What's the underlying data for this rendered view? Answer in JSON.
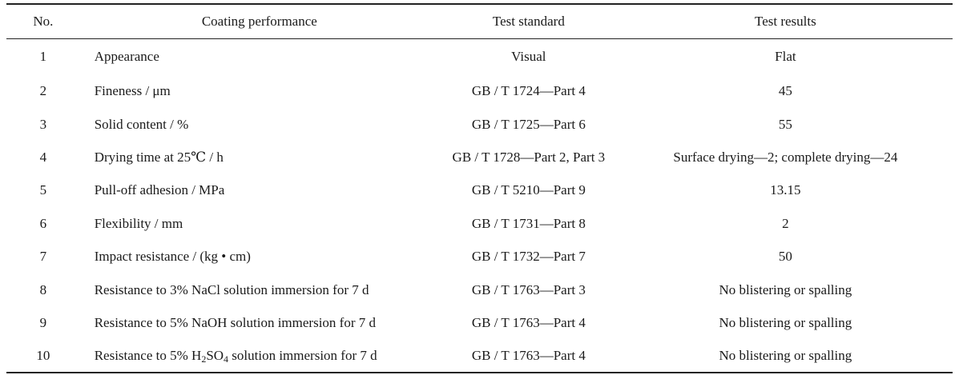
{
  "table": {
    "headers": {
      "no": "No.",
      "performance": "Coating performance",
      "standard": "Test standard",
      "results": "Test results"
    },
    "rows": [
      {
        "no": "1",
        "performance": "Appearance",
        "standard": "Visual",
        "result": "Flat"
      },
      {
        "no": "2",
        "performance": "Fineness / μm",
        "standard": "GB / T 1724—Part 4",
        "result": "45"
      },
      {
        "no": "3",
        "performance": "Solid content / %",
        "standard": "GB / T 1725—Part 6",
        "result": "55"
      },
      {
        "no": "4",
        "performance": "Drying time at 25℃ / h",
        "standard": "GB / T 1728—Part 2, Part 3",
        "result": "Surface drying—2; complete drying—24"
      },
      {
        "no": "5",
        "performance": "Pull-off adhesion / MPa",
        "standard": "GB / T 5210—Part 9",
        "result": "13.15"
      },
      {
        "no": "6",
        "performance": "Flexibility / mm",
        "standard": "GB / T 1731—Part 8",
        "result": "2"
      },
      {
        "no": "7",
        "performance": "Impact resistance / (kg • cm)",
        "standard": "GB / T 1732—Part 7",
        "result": "50"
      },
      {
        "no": "8",
        "performance": "Resistance to 3% NaCl solution immersion for 7 d",
        "standard": "GB / T 1763—Part 3",
        "result": "No blistering or spalling"
      },
      {
        "no": "9",
        "performance": "Resistance to 5% NaOH solution immersion for 7 d",
        "standard": "GB / T 1763—Part 4",
        "result": "No blistering or spalling"
      },
      {
        "no": "10",
        "performance_prefix": "Resistance to 5% H",
        "performance_sub1": "2",
        "performance_mid": "SO",
        "performance_sub2": "4",
        "performance_suffix": " solution immersion for 7 d",
        "standard": "GB / T 1763—Part 4",
        "result": "No blistering or spalling"
      }
    ]
  }
}
